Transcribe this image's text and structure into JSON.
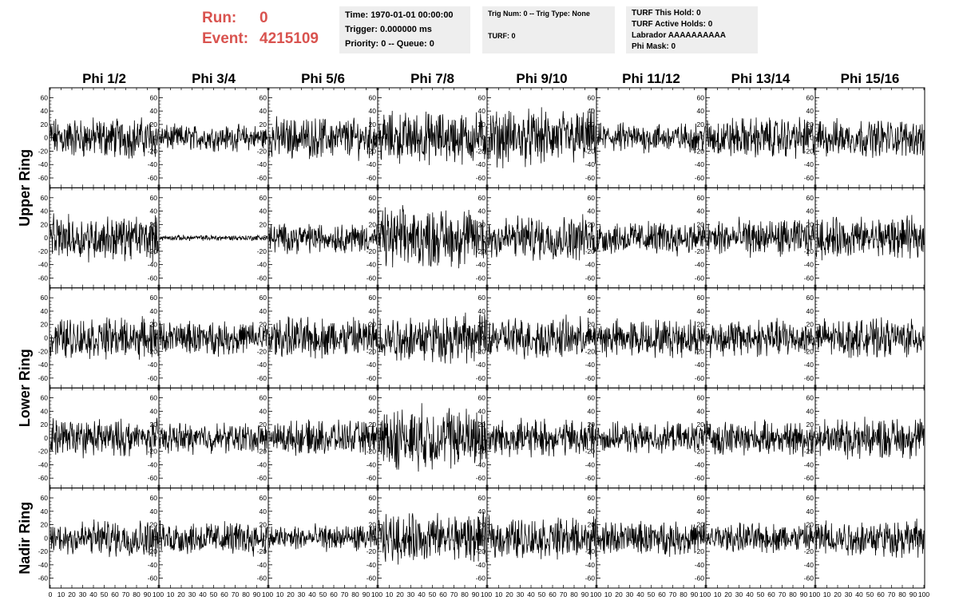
{
  "header": {
    "run_label": "Run:",
    "run_value": "0",
    "event_label": "Event:",
    "event_value": "4215109",
    "time_line": "Time: 1970-01-01 00:00:00",
    "trigger_line": "Trigger: 0.000000 ms",
    "priority_line": "Priority: 0 -- Queue: 0",
    "trig_line": "Trig Num: 0 -- Trig Type: None",
    "turf_line": "TURF: 0",
    "turf_hold_line": "TURF This Hold: 0",
    "turf_active_line": "TURF Active Holds: 0",
    "labrador_line": "Labrador AAAAAAAAAA",
    "phimask_line": "Phi Mask: 0"
  },
  "colors": {
    "run_text": "#d9534f",
    "info_bg": "#eeeeee",
    "trace": "#000000"
  },
  "chart_data": {
    "type": "line",
    "columns": [
      "Phi 1/2",
      "Phi 3/4",
      "Phi 5/6",
      "Phi 7/8",
      "Phi 9/10",
      "Phi 11/12",
      "Phi 13/14",
      "Phi 15/16"
    ],
    "row_labels": [
      "Upper Ring",
      "Lower Ring",
      "Nadir Ring"
    ],
    "xlim": [
      0,
      100
    ],
    "ylim": [
      -70,
      70
    ],
    "x_ticks": [
      "0",
      "10",
      "20",
      "30",
      "40",
      "50",
      "60",
      "70",
      "80",
      "90",
      "100"
    ],
    "y_ticks": [
      "60",
      "40",
      "20",
      "0",
      "-20",
      "-40",
      "-60"
    ],
    "samples_per_trace": 260,
    "amplitude": [
      [
        22,
        14,
        22,
        28,
        30,
        16,
        22,
        20
      ],
      [
        24,
        3,
        16,
        32,
        24,
        18,
        20,
        22
      ],
      [
        22,
        18,
        22,
        26,
        22,
        20,
        20,
        20
      ],
      [
        20,
        16,
        18,
        34,
        20,
        16,
        18,
        22
      ],
      [
        20,
        18,
        14,
        26,
        22,
        18,
        16,
        20
      ]
    ]
  }
}
